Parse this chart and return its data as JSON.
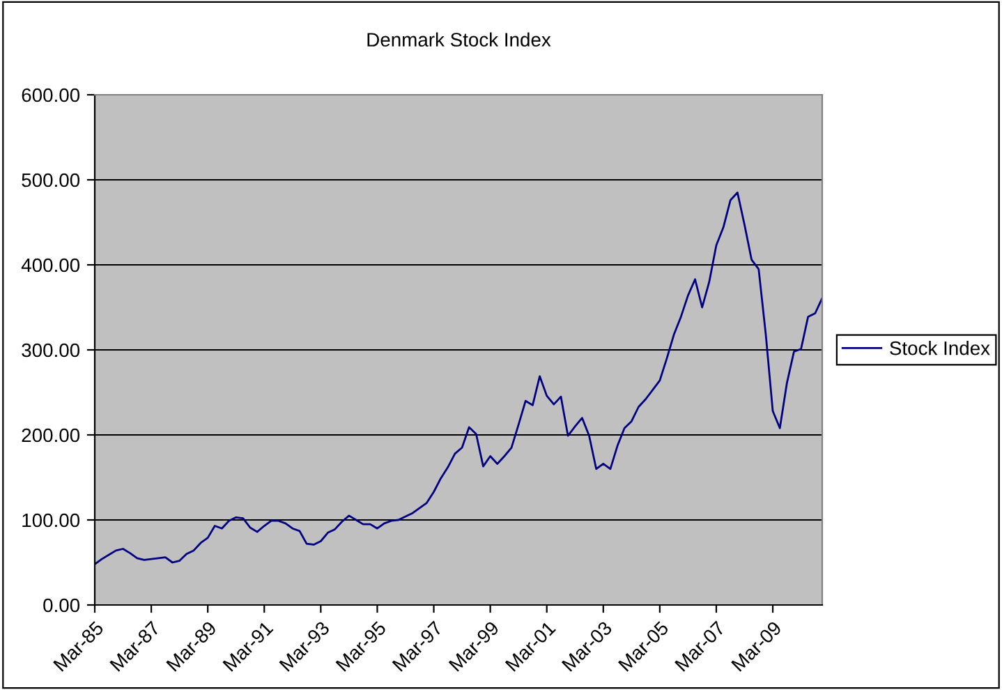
{
  "chart_data": {
    "type": "line",
    "title": "Denmark Stock Index",
    "categories": [
      "Mar-85",
      null,
      null,
      null,
      null,
      null,
      null,
      null,
      "Mar-87",
      null,
      null,
      null,
      null,
      null,
      null,
      null,
      "Mar-89",
      null,
      null,
      null,
      null,
      null,
      null,
      null,
      "Mar-91",
      null,
      null,
      null,
      null,
      null,
      null,
      null,
      "Mar-93",
      null,
      null,
      null,
      null,
      null,
      null,
      null,
      "Mar-95",
      null,
      null,
      null,
      null,
      null,
      null,
      null,
      "Mar-97",
      null,
      null,
      null,
      null,
      null,
      null,
      null,
      "Mar-99",
      null,
      null,
      null,
      null,
      null,
      null,
      null,
      "Mar-01",
      null,
      null,
      null,
      null,
      null,
      null,
      null,
      "Mar-03",
      null,
      null,
      null,
      null,
      null,
      null,
      null,
      "Mar-05",
      null,
      null,
      null,
      null,
      null,
      null,
      null,
      "Mar-07",
      null,
      null,
      null,
      null,
      null,
      null,
      null,
      "Mar-09",
      null,
      null,
      null,
      null,
      null,
      null,
      null
    ],
    "series": [
      {
        "name": "Stock Index",
        "color": "#000080",
        "values": [
          48,
          54,
          59,
          64,
          66,
          61,
          55,
          53,
          54,
          55,
          56,
          50,
          52,
          60,
          64,
          73,
          79,
          93,
          90,
          99,
          103,
          102,
          91,
          86,
          93,
          99,
          99,
          96,
          90,
          87,
          72,
          71,
          75,
          85,
          89,
          98,
          105,
          100,
          95,
          95,
          90,
          96,
          99,
          100,
          104,
          108,
          114,
          120,
          133,
          149,
          162,
          178,
          185,
          209,
          201,
          163,
          175,
          166,
          175,
          185,
          212,
          240,
          235,
          269,
          246,
          236,
          245,
          199,
          210,
          220,
          199,
          160,
          166,
          160,
          187,
          208,
          216,
          233,
          242,
          253,
          264,
          290,
          318,
          339,
          364,
          383,
          350,
          380,
          423,
          444,
          476,
          485,
          447,
          406,
          395,
          319,
          228,
          208,
          261,
          298,
          301,
          339,
          343,
          361
        ]
      }
    ],
    "ylim": [
      0,
      600
    ],
    "yticks": [
      {
        "value": 0,
        "label": "0.00"
      },
      {
        "value": 100,
        "label": "100.00"
      },
      {
        "value": 200,
        "label": "200.00"
      },
      {
        "value": 300,
        "label": "300.00"
      },
      {
        "value": 400,
        "label": "400.00"
      },
      {
        "value": 500,
        "label": "500.00"
      },
      {
        "value": 600,
        "label": "600.00"
      }
    ],
    "grid": "y",
    "legend": "right",
    "marker": "none",
    "line_style": "solid"
  }
}
